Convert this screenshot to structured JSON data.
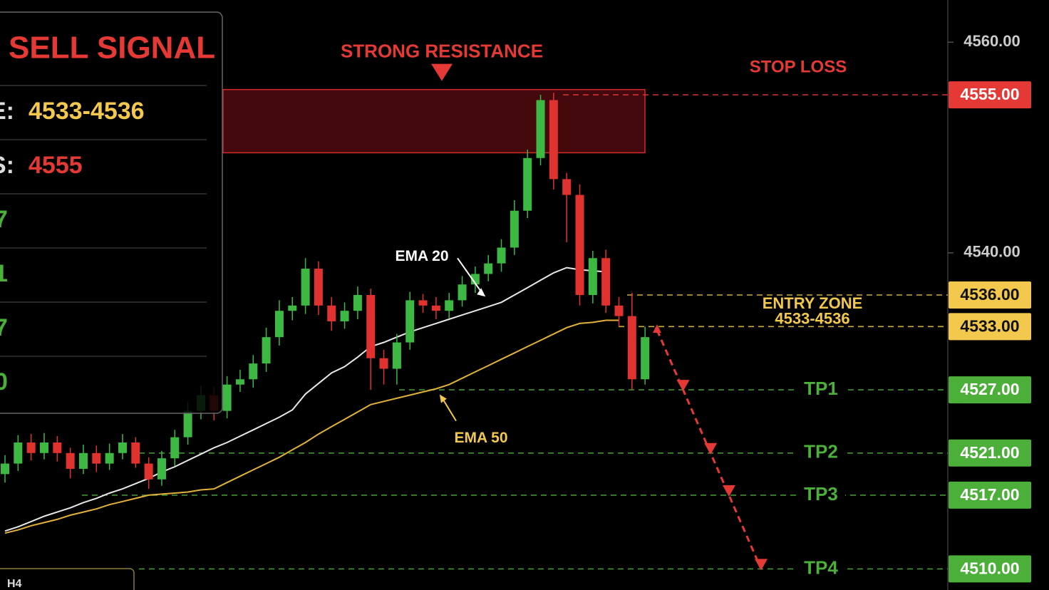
{
  "chart_data": {
    "type": "candlestick",
    "panel": {
      "title": "SELL SIGNAL",
      "rows": [
        [
          "E:",
          "4533-4536"
        ],
        [
          "S:",
          "4555"
        ],
        [
          "7"
        ],
        [
          "1"
        ],
        [
          "7"
        ],
        [
          "0"
        ]
      ],
      "timeframe": "H4"
    },
    "up_color": "#3db843",
    "down_color": "#e0322f",
    "candles": {
      "open": [
        4519,
        4520,
        4522,
        4521,
        4522,
        4521,
        4519.5,
        4521,
        4520,
        4521,
        4522,
        4520,
        4518.5,
        4520.5,
        4522.5,
        4525,
        4526.5,
        4525,
        4527.5,
        4528,
        4529.5,
        4532,
        4534.5,
        4535,
        4538.5,
        4535,
        4533.5,
        4534.5,
        4536,
        4530,
        4529,
        4531.5,
        4535.5,
        4535,
        4534.5,
        4535.5,
        4537,
        4538,
        4539,
        4540.5,
        4544,
        4549,
        4554.5,
        4547,
        4545.5,
        4536,
        4539.5,
        4535,
        4534,
        4528
      ],
      "high": [
        4520.8,
        4522.7,
        4522.8,
        4522.9,
        4522.6,
        4521.5,
        4521.8,
        4521.7,
        4521.9,
        4522.8,
        4522.5,
        4520.6,
        4521.2,
        4523.2,
        4525.9,
        4527.4,
        4527.3,
        4528.3,
        4528.9,
        4530.3,
        4532.9,
        4535.5,
        4535.8,
        4539.5,
        4539.2,
        4535.8,
        4535.3,
        4536.8,
        4536.6,
        4530.8,
        4532.3,
        4536.3,
        4536.1,
        4535.8,
        4536.2,
        4537.8,
        4538.7,
        4539.8,
        4541.3,
        4545,
        4549.8,
        4555,
        4555.2,
        4547.6,
        4546.5,
        4540.2,
        4540.3,
        4535.8,
        4536.2,
        4533
      ],
      "low": [
        4518.2,
        4519.3,
        4520.3,
        4520.4,
        4520.2,
        4518.6,
        4519,
        4519.2,
        4519.4,
        4520.4,
        4519.6,
        4517.6,
        4517.9,
        4519.8,
        4521.8,
        4524.2,
        4524.1,
        4524.3,
        4526.8,
        4527.2,
        4528.7,
        4531.2,
        4533.6,
        4534.2,
        4534.1,
        4532.6,
        4532.8,
        4533.7,
        4527,
        4527.5,
        4527.5,
        4530.8,
        4534.3,
        4533.7,
        4533.8,
        4534.9,
        4536.2,
        4537.3,
        4538.2,
        4539.8,
        4543.3,
        4548.3,
        4546,
        4541,
        4535,
        4535.2,
        4534.3,
        4533,
        4527,
        4527.5
      ],
      "close": [
        4520,
        4522,
        4521,
        4522,
        4521,
        4519.5,
        4521,
        4520,
        4521,
        4522,
        4520,
        4518.5,
        4520.5,
        4522.5,
        4525,
        4526.5,
        4525,
        4527.5,
        4528,
        4529.5,
        4532,
        4534.5,
        4535,
        4538.5,
        4535,
        4533.5,
        4534.5,
        4536,
        4530,
        4529,
        4531.5,
        4535.5,
        4535,
        4534.5,
        4535.5,
        4537,
        4538,
        4539,
        4540.5,
        4544,
        4549,
        4554.5,
        4547,
        4545.5,
        4536,
        4539.5,
        4535,
        4534,
        4528,
        4532
      ]
    },
    "series": [
      {
        "name": "EMA 20",
        "color": "#e8e8e8",
        "values": [
          4513.6,
          4514.0,
          4514.5,
          4515.0,
          4515.4,
          4515.8,
          4516.3,
          4516.7,
          4517.2,
          4517.6,
          4518.1,
          4518.6,
          4519.2,
          4519.7,
          4520.3,
          4520.9,
          4521.5,
          4522.0,
          4522.6,
          4523.2,
          4523.8,
          4524.4,
          4525.1,
          4526.6,
          4527.6,
          4528.6,
          4529.2,
          4530.1,
          4531.1,
          4531.5,
          4532.0,
          4532.5,
          4532.9,
          4533.3,
          4533.7,
          4534.1,
          4534.5,
          4534.9,
          4535.3,
          4536.0,
          4536.7,
          4537.4,
          4538.1,
          4538.6,
          4538.4,
          4538.3,
          4538.2,
          null,
          null,
          null
        ]
      },
      {
        "name": "EMA 50",
        "color": "#e0b23a",
        "values": [
          4513.4,
          4513.7,
          4514.1,
          4514.4,
          4514.7,
          4515.1,
          4515.4,
          4515.7,
          4516.1,
          4516.4,
          4516.7,
          4517.0,
          4517.1,
          4517.2,
          4517.3,
          4517.5,
          4517.6,
          4518.2,
          4518.8,
          4519.4,
          4520.0,
          4520.6,
          4521.3,
          4522.0,
          4522.8,
          4523.5,
          4524.2,
          4524.9,
          4525.6,
          4525.9,
          4526.2,
          4526.5,
          4526.8,
          4527.1,
          4527.5,
          4528.1,
          4528.7,
          4529.3,
          4529.9,
          4530.5,
          4531.1,
          4531.7,
          4532.3,
          4532.9,
          4533.3,
          4533.4,
          4533.6,
          4533.6,
          null,
          null
        ]
      }
    ],
    "resistance": {
      "label": "STRONG RESISTANCE",
      "range": [
        4549.5,
        4555.5
      ]
    },
    "entry_zone": {
      "label": "ENTRY ZONE",
      "range_label": "4533-4536"
    },
    "levels": [
      {
        "name": "STOP LOSS",
        "value": 4555,
        "value_label": "4555.00",
        "color": "#e53935"
      },
      {
        "value": 4536,
        "value_label": "4536.00",
        "color": "#f2c94c"
      },
      {
        "value": 4533,
        "value_label": "4533.00",
        "color": "#f2c94c"
      },
      {
        "name": "TP1",
        "value": 4527,
        "value_label": "4527.00",
        "color": "#4caf3a"
      },
      {
        "name": "TP2",
        "value": 4521,
        "value_label": "4521.00",
        "color": "#4caf3a"
      },
      {
        "name": "TP3",
        "value": 4517,
        "value_label": "4517.00",
        "color": "#4caf3a"
      },
      {
        "name": "TP4",
        "value": 4510,
        "value_label": "4510.00",
        "color": "#4caf3a"
      }
    ],
    "ylim": [
      4508,
      4564
    ],
    "yticks": [
      {
        "value": 4560,
        "label": "4560.00"
      },
      {
        "value": 4540,
        "label": "4540.00"
      }
    ]
  }
}
